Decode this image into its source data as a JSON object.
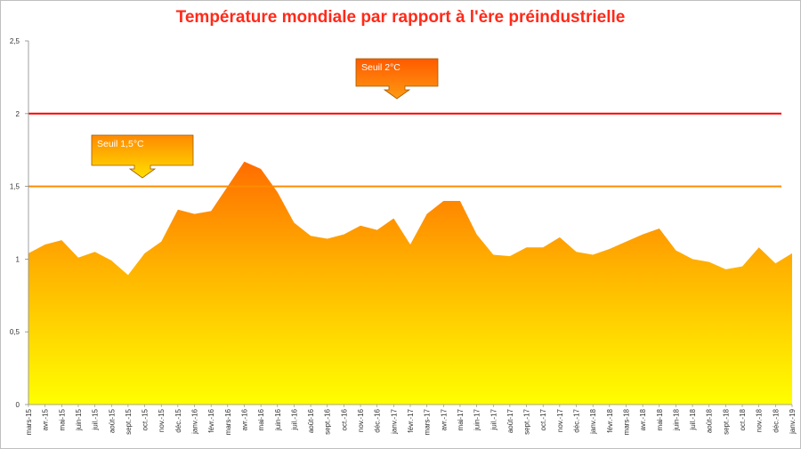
{
  "chart_data": {
    "type": "area",
    "title": "Température mondiale par rapport à l'ère préindustrielle",
    "xlabel": "",
    "ylabel": "",
    "ylim": [
      0,
      2.5
    ],
    "yticks": [
      "0",
      "0,5",
      "1",
      "1,5",
      "2",
      "2,5"
    ],
    "ytick_values": [
      0,
      0.5,
      1,
      1.5,
      2,
      2.5
    ],
    "grid": false,
    "categories": [
      "mars-15",
      "avr.-15",
      "mai-15",
      "juin-15",
      "juil.-15",
      "août-15",
      "sept.-15",
      "oct.-15",
      "nov.-15",
      "déc.-15",
      "janv.-16",
      "févr.-16",
      "mars-16",
      "avr.-16",
      "mai-16",
      "juin-16",
      "juil.-16",
      "août-16",
      "sept.-16",
      "oct.-16",
      "nov.-16",
      "déc.-16",
      "janv.-17",
      "févr.-17",
      "mars-17",
      "avr.-17",
      "mai-17",
      "juin-17",
      "juil.-17",
      "août-17",
      "sept.-17",
      "oct.-17",
      "nov.-17",
      "déc.-17",
      "janv.-18",
      "févr.-18",
      "mars-18",
      "avr.-18",
      "mai-18",
      "juin-18",
      "juil.-18",
      "août-18",
      "sept.-18",
      "oct.-18",
      "nov.-18",
      "déc.-18",
      "janv.-19"
    ],
    "series": [
      {
        "values": [
          1.04,
          1.1,
          1.13,
          1.01,
          1.05,
          0.99,
          0.89,
          1.04,
          1.12,
          1.34,
          1.31,
          1.33,
          1.5,
          1.67,
          1.62,
          1.46,
          1.25,
          1.16,
          1.14,
          1.17,
          1.23,
          1.2,
          1.28,
          1.1,
          1.31,
          1.4,
          1.4,
          1.17,
          1.03,
          1.02,
          1.08,
          1.08,
          1.15,
          1.05,
          1.03,
          1.07,
          1.12,
          1.17,
          1.21,
          1.06,
          1.0,
          0.98,
          0.93,
          0.95,
          1.08,
          0.97,
          1.04
        ]
      }
    ],
    "thresholds": [
      {
        "value": 2.0,
        "label": "Seuil 2°C",
        "color": "#ff0000"
      },
      {
        "value": 1.5,
        "label": "Seuil 1,5°C",
        "color": "#ff8c00"
      }
    ],
    "colors": {
      "area_top": "#ff6a00",
      "area_mid": "#ffb300",
      "area_bottom": "#ffff00",
      "title": "#ff2a1a"
    }
  }
}
